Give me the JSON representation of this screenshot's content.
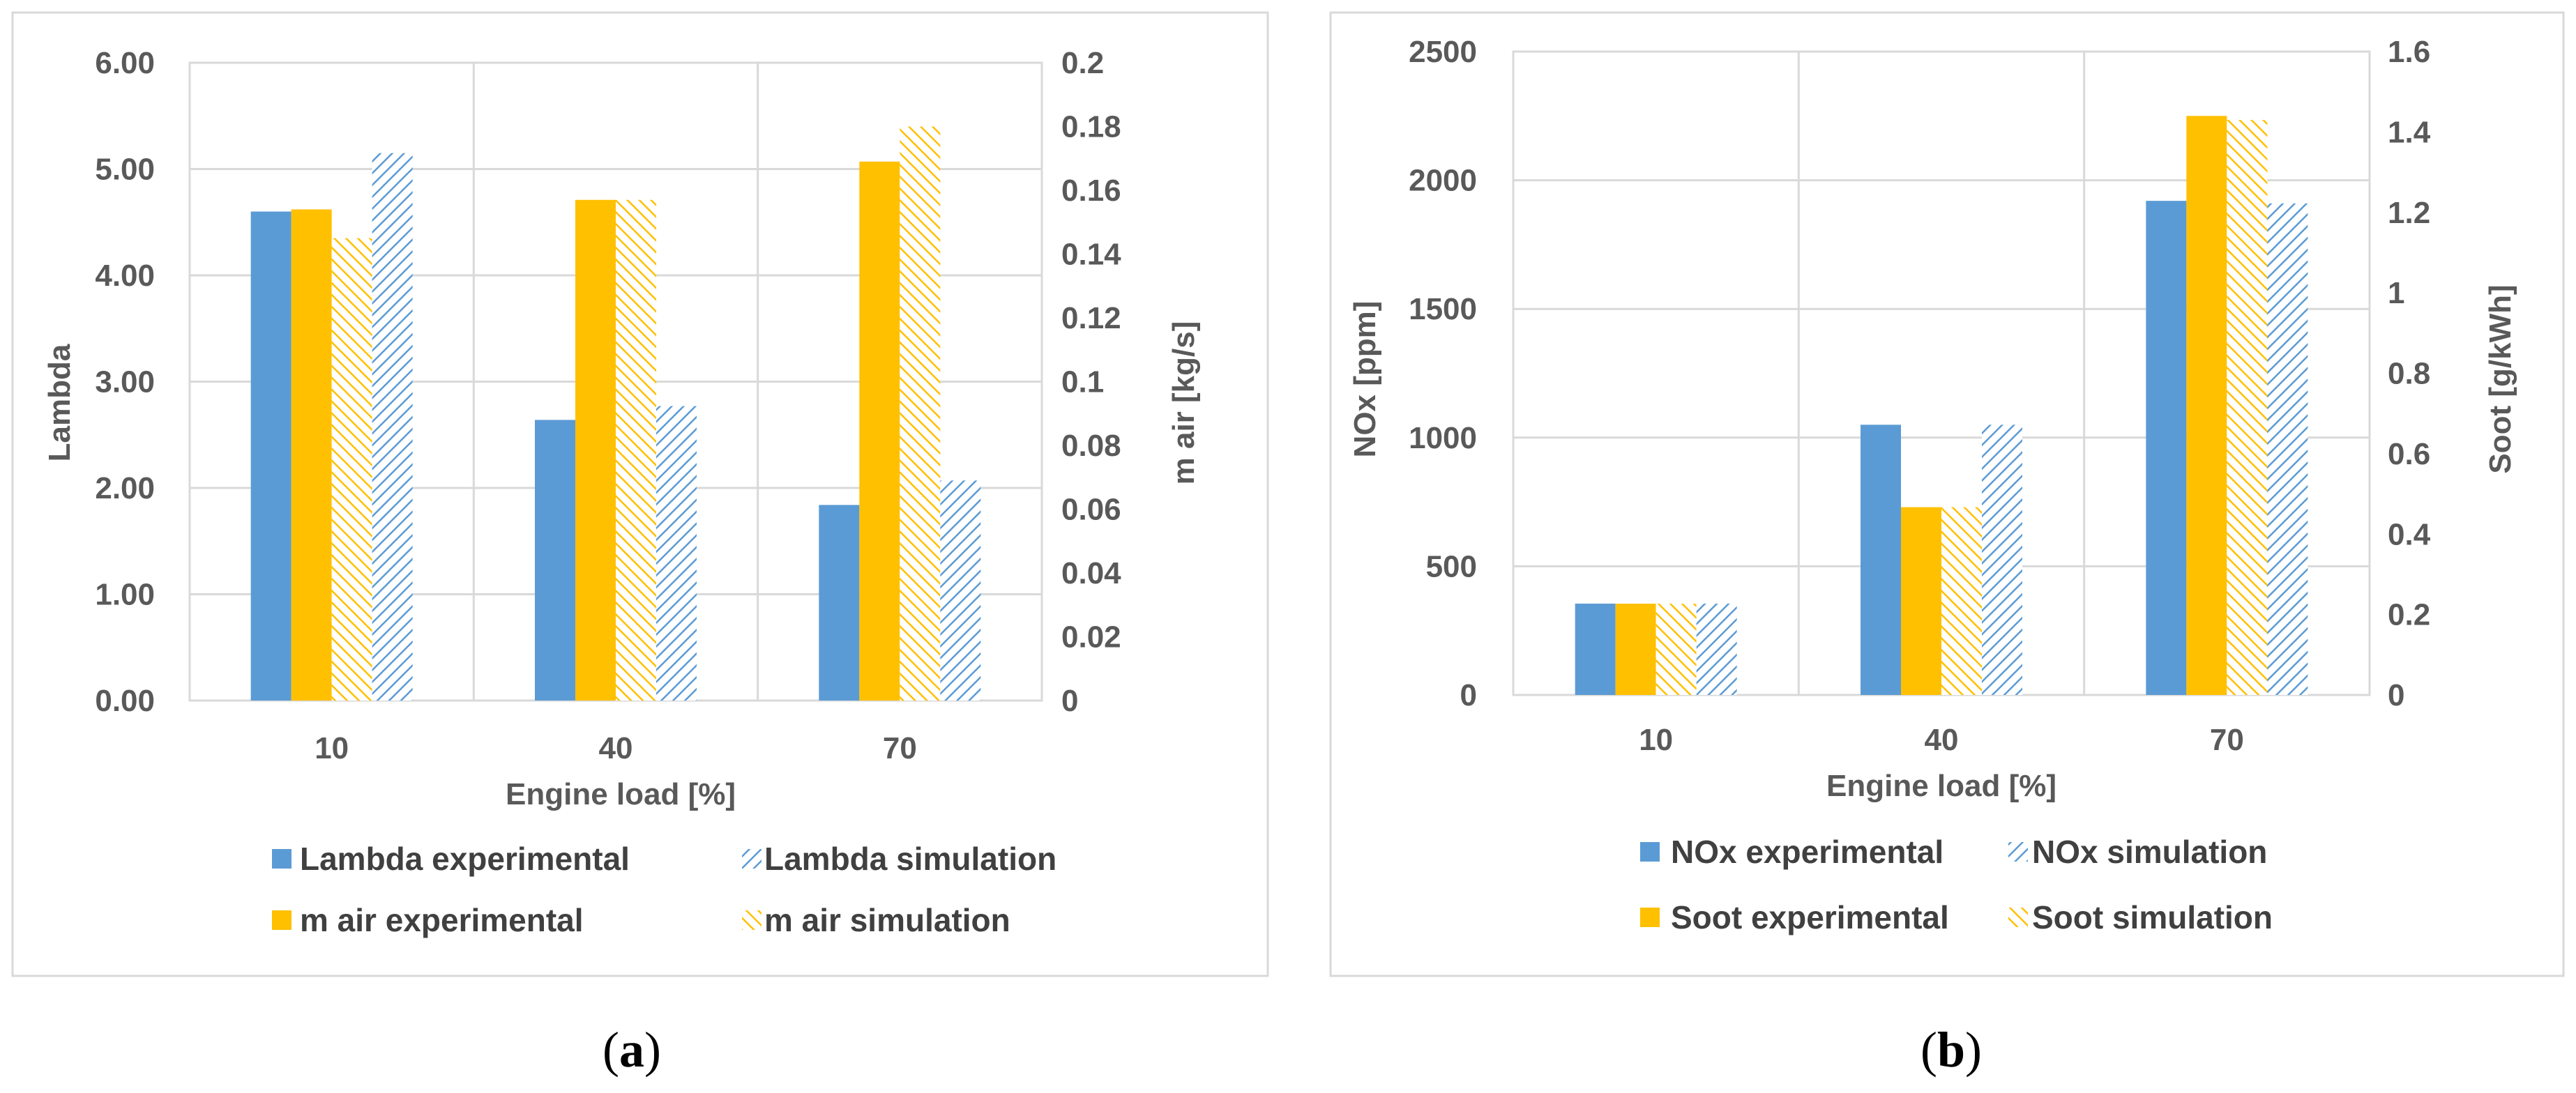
{
  "colors": {
    "blue": "#5b9bd5",
    "orange": "#ffc000",
    "grid": "#d9d9d9",
    "frame": "#d9d9d9",
    "text": "#595959"
  },
  "panels": [
    {
      "label_open": "(",
      "label_letter": "a",
      "label_close": ")",
      "chart_data": {
        "type": "bar",
        "title": "",
        "xlabel": "Engine load [%]",
        "ylabel": "Lambda",
        "ylabel_right": "m air [kg/s]",
        "categories": [
          "10",
          "40",
          "70"
        ],
        "ylim": [
          0,
          6
        ],
        "ylim_right": [
          0,
          0.2
        ],
        "yticks": [
          "0.00",
          "1.00",
          "2.00",
          "3.00",
          "4.00",
          "5.00",
          "6.00"
        ],
        "yticks_right": [
          "0",
          "0.02",
          "0.04",
          "0.06",
          "0.08",
          "0.1",
          "0.12",
          "0.14",
          "0.16",
          "0.18",
          "0.2"
        ],
        "series": [
          {
            "name": "Lambda experimental",
            "axis": "left",
            "style": "solid",
            "color": "blue",
            "values": [
              4.6,
              2.64,
              1.84
            ]
          },
          {
            "name": "m air experimental",
            "axis": "right",
            "style": "solid",
            "color": "orange",
            "values": [
              0.154,
              0.157,
              0.169
            ]
          },
          {
            "name": "m air simulation",
            "axis": "right",
            "style": "hatch",
            "color": "orange",
            "values": [
              0.145,
              0.157,
              0.18
            ]
          },
          {
            "name": "Lambda simulation",
            "axis": "left",
            "style": "hatch",
            "color": "blue",
            "values": [
              5.15,
              2.77,
              2.07
            ]
          }
        ],
        "legend": [
          "Lambda experimental",
          "Lambda simulation",
          "m air experimental",
          "m air simulation"
        ]
      }
    },
    {
      "label_open": "(",
      "label_letter": "b",
      "label_close": ")",
      "chart_data": {
        "type": "bar",
        "title": "",
        "xlabel": "Engine load [%]",
        "ylabel": "NOx [ppm]",
        "ylabel_right": "Soot [g/kWh]",
        "categories": [
          "10",
          "40",
          "70"
        ],
        "ylim": [
          0,
          2500
        ],
        "ylim_right": [
          0,
          1.6
        ],
        "yticks": [
          "0",
          "500",
          "1000",
          "1500",
          "2000",
          "2500"
        ],
        "yticks_right": [
          "0",
          "0.2",
          "0.4",
          "0.6",
          "0.8",
          "1",
          "1.2",
          "1.4",
          "1.6"
        ],
        "series": [
          {
            "name": "NOx experimental",
            "axis": "left",
            "style": "solid",
            "color": "blue",
            "values": [
              355,
              1050,
              1920
            ]
          },
          {
            "name": "Soot experimental",
            "axis": "right",
            "style": "solid",
            "color": "orange",
            "values": [
              0.227,
              0.467,
              1.44
            ]
          },
          {
            "name": "Soot simulation",
            "axis": "right",
            "style": "hatch",
            "color": "orange",
            "values": [
              0.227,
              0.467,
              1.43
            ]
          },
          {
            "name": "NOx simulation",
            "axis": "left",
            "style": "hatch",
            "color": "blue",
            "values": [
              355,
              1050,
              1910
            ]
          }
        ],
        "legend": [
          "NOx experimental",
          "NOx simulation",
          "Soot experimental",
          "Soot simulation"
        ]
      }
    }
  ]
}
